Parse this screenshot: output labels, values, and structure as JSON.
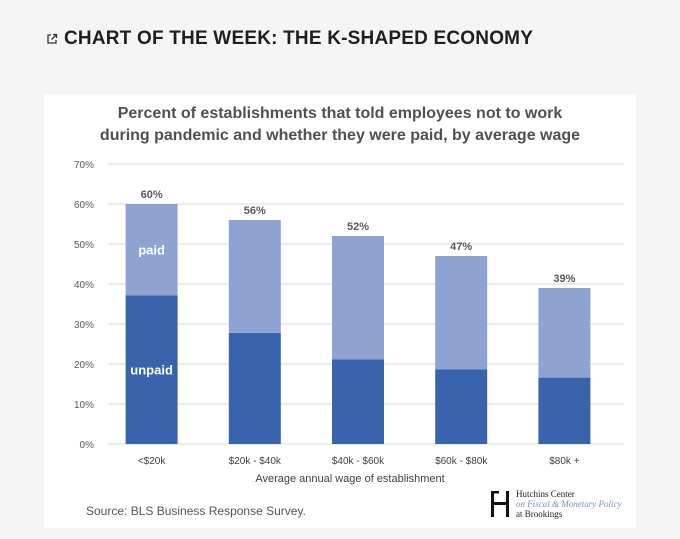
{
  "headline": "CHART OF THE WEEK: THE K-SHAPED ECONOMY",
  "source": "Source: BLS Business Response Survey.",
  "logo": {
    "line1": "Hutchins Center",
    "line2": "on Fiscal & Monetary Policy",
    "line3": "at Brookings"
  },
  "colors": {
    "paid": "#8fa3d3",
    "unpaid": "#3a63ad",
    "grid": "#d9d9d9"
  },
  "chart_data": {
    "type": "bar",
    "stacked": true,
    "title": "Percent of establishments that told employees not to work during pandemic and whether they were paid, by average wage",
    "title_lines": [
      "Percent of establishments that told employees not to work",
      "during pandemic and whether they were paid, by average wage"
    ],
    "xlabel": "Average annual wage of establishment",
    "ylabel": "",
    "ylim": [
      0,
      70
    ],
    "yticks": [
      0,
      10,
      20,
      30,
      40,
      50,
      60,
      70
    ],
    "ytick_labels": [
      "0%",
      "10%",
      "20%",
      "30%",
      "40%",
      "50%",
      "60%",
      "70%"
    ],
    "categories": [
      "<$20k",
      "$20k - $40k",
      "$40k - $60k",
      "$60k - $80k",
      "$80k +"
    ],
    "series": [
      {
        "name": "unpaid",
        "values": [
          37.2,
          27.8,
          21.2,
          18.7,
          16.6
        ]
      },
      {
        "name": "paid",
        "values": [
          22.8,
          28.2,
          30.8,
          28.3,
          22.4
        ]
      }
    ],
    "totals": [
      60,
      56,
      52,
      47,
      39
    ],
    "total_labels": [
      "60%",
      "56%",
      "52%",
      "47%",
      "39%"
    ],
    "grid": true,
    "legend": "inside first bar"
  }
}
